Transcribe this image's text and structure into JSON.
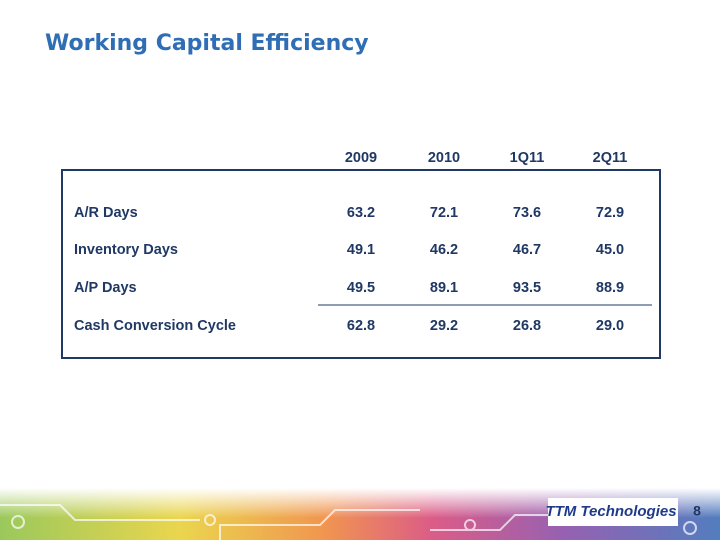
{
  "header": {
    "title": "Working Capital Efficiency"
  },
  "table": {
    "columns": [
      "2009",
      "2010",
      "1Q11",
      "2Q11"
    ],
    "rows": [
      {
        "label": "A/R Days",
        "values": [
          "63.2",
          "72.1",
          "73.6",
          "72.9"
        ]
      },
      {
        "label": "Inventory Days",
        "values": [
          "49.1",
          "46.2",
          "46.7",
          "45.0"
        ]
      },
      {
        "label": "A/P Days",
        "values": [
          "49.5",
          "89.1",
          "93.5",
          "88.9"
        ]
      },
      {
        "label": "Cash Conversion Cycle",
        "values": [
          "62.8",
          "29.2",
          "26.8",
          "29.0"
        ]
      }
    ]
  },
  "footer": {
    "logo": "TTM Technologies",
    "page_number": "8"
  }
}
